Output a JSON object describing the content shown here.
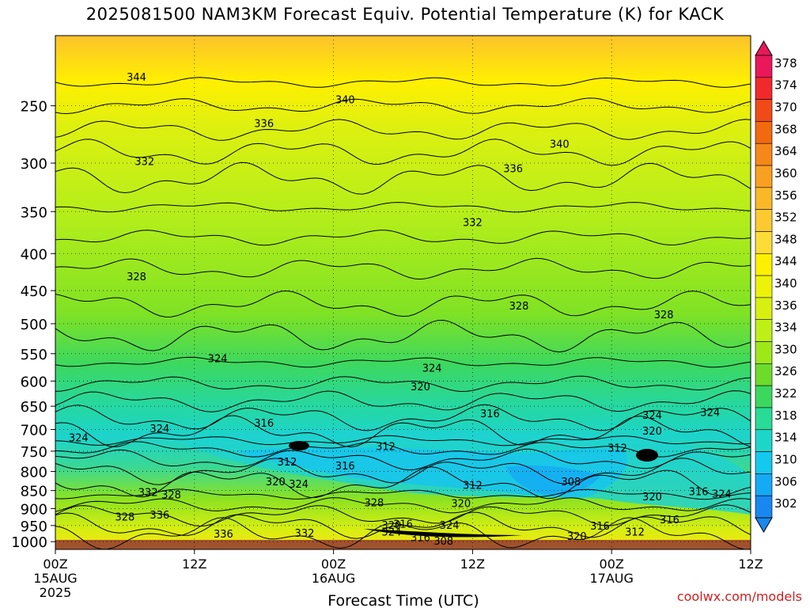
{
  "title": "2025081500 NAM3KM Forecast Equiv. Potential Temperature (K) for KACK",
  "credit": "coolwx.com/models",
  "chart_data": {
    "type": "heatmap",
    "title": "2025081500 NAM3KM Forecast Equiv. Potential Temperature (K) for KACK",
    "xlabel": "Forecast Time (UTC)",
    "ylabel": "",
    "grid": true,
    "y_scale": "log-pressure (hPa)",
    "ylim": [
      1025,
      200
    ],
    "xlim": [
      0,
      60
    ],
    "x_ticks": [
      {
        "h": 0,
        "label": "00Z",
        "sub": [
          "15AUG",
          "2025"
        ]
      },
      {
        "h": 12,
        "label": "12Z",
        "sub": []
      },
      {
        "h": 24,
        "label": "00Z",
        "sub": [
          "16AUG"
        ]
      },
      {
        "h": 36,
        "label": "12Z",
        "sub": []
      },
      {
        "h": 48,
        "label": "00Z",
        "sub": [
          "17AUG"
        ]
      },
      {
        "h": 60,
        "label": "12Z",
        "sub": []
      }
    ],
    "y_ticks": [
      250,
      300,
      350,
      400,
      450,
      500,
      550,
      600,
      650,
      700,
      750,
      800,
      850,
      900,
      950,
      1000
    ],
    "colorbar": {
      "labels": [
        378,
        374,
        370,
        368,
        364,
        360,
        356,
        352,
        348,
        344,
        340,
        336,
        334,
        330,
        326,
        322,
        318,
        314,
        310,
        306,
        302
      ],
      "colors": [
        "#e8185a",
        "#f02a2a",
        "#f04a18",
        "#f26a10",
        "#f6881a",
        "#f8a020",
        "#fab828",
        "#fcca30",
        "#fedc38",
        "#fff000",
        "#ecf208",
        "#d8f010",
        "#bef018",
        "#9ee81a",
        "#6cdc2c",
        "#3cd85e",
        "#28dc96",
        "#1ed6c8",
        "#14c8ee",
        "#14aaf4",
        "#1888f0"
      ],
      "arrow_top": "#e8185a",
      "arrow_bottom": "#1888f0"
    },
    "contour_labels": [
      {
        "t": 7,
        "p": 228,
        "v": "344"
      },
      {
        "t": 25,
        "p": 245,
        "v": "340"
      },
      {
        "t": 18,
        "p": 264,
        "v": "336"
      },
      {
        "t": 43.5,
        "p": 282,
        "v": "340"
      },
      {
        "t": 7.7,
        "p": 298,
        "v": "332"
      },
      {
        "t": 39.5,
        "p": 305,
        "v": "336"
      },
      {
        "t": 36,
        "p": 362,
        "v": "332"
      },
      {
        "t": 7,
        "p": 430,
        "v": "328"
      },
      {
        "t": 40,
        "p": 472,
        "v": "328"
      },
      {
        "t": 52.5,
        "p": 485,
        "v": "328"
      },
      {
        "t": 14,
        "p": 558,
        "v": "324"
      },
      {
        "t": 32.5,
        "p": 575,
        "v": "324"
      },
      {
        "t": 31.5,
        "p": 610,
        "v": "320"
      },
      {
        "t": 37.5,
        "p": 665,
        "v": "316"
      },
      {
        "t": 18,
        "p": 685,
        "v": "316"
      },
      {
        "t": 9,
        "p": 697,
        "v": "324"
      },
      {
        "t": 2,
        "p": 718,
        "v": "324"
      },
      {
        "t": 51.5,
        "p": 668,
        "v": "324"
      },
      {
        "t": 56.5,
        "p": 662,
        "v": "324"
      },
      {
        "t": 51.5,
        "p": 703,
        "v": "320"
      },
      {
        "t": 28.5,
        "p": 738,
        "v": "312"
      },
      {
        "t": 48.5,
        "p": 742,
        "v": "312"
      },
      {
        "t": 20,
        "p": 775,
        "v": "312"
      },
      {
        "t": 25,
        "p": 785,
        "v": "316"
      },
      {
        "t": 44.5,
        "p": 825,
        "v": "308"
      },
      {
        "t": 19,
        "p": 825,
        "v": "320"
      },
      {
        "t": 21,
        "p": 832,
        "v": "324"
      },
      {
        "t": 36,
        "p": 835,
        "v": "312"
      },
      {
        "t": 8,
        "p": 854,
        "v": "332"
      },
      {
        "t": 10,
        "p": 860,
        "v": "328"
      },
      {
        "t": 27.5,
        "p": 882,
        "v": "328"
      },
      {
        "t": 35,
        "p": 885,
        "v": "320"
      },
      {
        "t": 51.5,
        "p": 866,
        "v": "320"
      },
      {
        "t": 55.5,
        "p": 852,
        "v": "316"
      },
      {
        "t": 57.5,
        "p": 858,
        "v": "324"
      },
      {
        "t": 6,
        "p": 923,
        "v": "328"
      },
      {
        "t": 9,
        "p": 917,
        "v": "336"
      },
      {
        "t": 29,
        "p": 948,
        "v": "320"
      },
      {
        "t": 30,
        "p": 944,
        "v": "316"
      },
      {
        "t": 34,
        "p": 948,
        "v": "324"
      },
      {
        "t": 53,
        "p": 932,
        "v": "316"
      },
      {
        "t": 47,
        "p": 950,
        "v": "316"
      },
      {
        "t": 29,
        "p": 968,
        "v": "324"
      },
      {
        "t": 14.5,
        "p": 975,
        "v": "336"
      },
      {
        "t": 21.5,
        "p": 972,
        "v": "332"
      },
      {
        "t": 31.5,
        "p": 986,
        "v": "316"
      },
      {
        "t": 33.5,
        "p": 997,
        "v": "308"
      },
      {
        "t": 45,
        "p": 982,
        "v": "320"
      },
      {
        "t": 50,
        "p": 969,
        "v": "312"
      }
    ]
  }
}
